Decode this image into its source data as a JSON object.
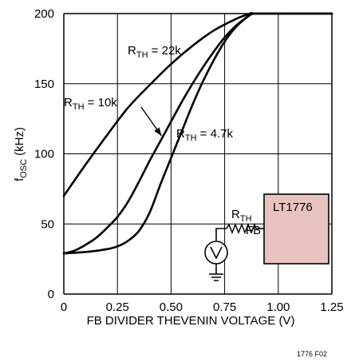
{
  "chart_data": {
    "type": "line",
    "title": "",
    "xlabel": "FB DIVIDER THEVENIN VOLTAGE (V)",
    "ylabel": {
      "main": "f",
      "sub": "OSC",
      "suffix": " (kHz)"
    },
    "xlim": [
      0,
      1.25
    ],
    "ylim": [
      0,
      200
    ],
    "x_ticks": [
      0,
      0.25,
      0.5,
      0.75,
      1.0,
      1.25
    ],
    "x_tick_labels": [
      "0",
      "0.25",
      "0.50",
      "0.75",
      "1.00",
      "1.25"
    ],
    "y_ticks": [
      0,
      50,
      100,
      150,
      200
    ],
    "y_tick_labels": [
      "0",
      "50",
      "100",
      "150",
      "200"
    ],
    "grid": true,
    "series": [
      {
        "name": "RTH = 22k",
        "label": {
          "main": "R",
          "sub": "TH",
          "suffix": " = 22k"
        },
        "x": [
          0,
          0.1,
          0.2,
          0.3,
          0.4,
          0.5,
          0.6,
          0.7,
          0.8,
          0.85,
          0.88,
          0.9,
          1.25
        ],
        "y": [
          70,
          92,
          113,
          133,
          149,
          164,
          177,
          188,
          196,
          199,
          200,
          200,
          200
        ]
      },
      {
        "name": "RTH = 10k",
        "label": {
          "main": "R",
          "sub": "TH",
          "suffix": " = 10k"
        },
        "x": [
          0,
          0.05,
          0.1,
          0.15,
          0.2,
          0.25,
          0.3,
          0.35,
          0.4,
          0.45,
          0.5,
          0.55,
          0.6,
          0.65,
          0.7,
          0.75,
          0.8,
          0.85,
          0.88,
          0.9,
          1.25
        ],
        "y": [
          29,
          31,
          35,
          40,
          47,
          55,
          66,
          80,
          95,
          109,
          123,
          137,
          150,
          162,
          173,
          183,
          191,
          197,
          200,
          200,
          200
        ]
      },
      {
        "name": "RTH = 4.7k",
        "label": {
          "main": "R",
          "sub": "TH",
          "suffix": " = 4.7k"
        },
        "x": [
          0,
          0.1,
          0.2,
          0.25,
          0.3,
          0.35,
          0.4,
          0.45,
          0.5,
          0.55,
          0.6,
          0.65,
          0.7,
          0.75,
          0.8,
          0.85,
          0.88,
          0.9,
          1.25
        ],
        "y": [
          29,
          30,
          32,
          34,
          38,
          45,
          58,
          78,
          97,
          116,
          135,
          152,
          167,
          180,
          190,
          197,
          200,
          200,
          200
        ]
      }
    ],
    "annotations": {
      "arrow_target_series": "RTH = 10k",
      "arrow_target_x": 0.47
    }
  },
  "inset": {
    "chip_label": "LT1776",
    "pin_label": "FB",
    "resistor_label": {
      "main": "R",
      "sub": "TH"
    },
    "chip_fill": "#e9c3c0",
    "source_symbol": "V"
  },
  "figure_code": "1776 F02"
}
